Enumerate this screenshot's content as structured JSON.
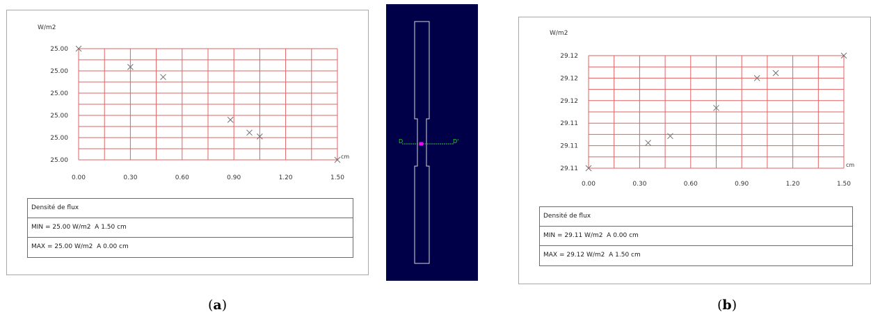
{
  "colors": {
    "grid": "#e06060",
    "marker": "#707070",
    "axis_text": "#333333",
    "geometry_bg": "#000048",
    "geometry_outline": "#d8d8d8",
    "probe_line": "#33cc33",
    "probe_point": "#ff00ff"
  },
  "chart_data": [
    {
      "type": "scatter",
      "panel": "(a)",
      "ylabel": "W/m2",
      "xlabel": "cm",
      "xlim": [
        0.0,
        1.5
      ],
      "x_ticks": [
        "0.00",
        "0.30",
        "0.60",
        "0.90",
        "1.20",
        "1.50"
      ],
      "y_ticks": [
        "25.00",
        "25.00",
        "25.00",
        "25.00",
        "25.00",
        "25.00"
      ],
      "grid": true,
      "points": [
        {
          "x": 0.0,
          "y": 0.0
        },
        {
          "x": 0.3,
          "y": 0.165
        },
        {
          "x": 0.49,
          "y": 0.255
        },
        {
          "x": 0.88,
          "y": 0.64
        },
        {
          "x": 0.99,
          "y": 0.755
        },
        {
          "x": 1.05,
          "y": 0.79
        },
        {
          "x": 1.5,
          "y": 1.0
        }
      ],
      "info": {
        "title": "Densité de flux",
        "min": "MIN = 25.00 W/m2  A 1.50 cm",
        "max": "MAX = 25.00 W/m2  A 0.00 cm"
      }
    },
    {
      "type": "scatter",
      "panel": "(b)",
      "ylabel": "W/m2",
      "xlabel": "cm",
      "xlim": [
        0.0,
        1.5
      ],
      "x_ticks": [
        "0.00",
        "0.30",
        "0.60",
        "0.90",
        "1.20",
        "1.50"
      ],
      "y_ticks": [
        "29.12",
        "29.12",
        "29.12",
        "29.11",
        "29.11",
        "29.11"
      ],
      "grid": true,
      "points": [
        {
          "x": 0.0,
          "y": 1.0
        },
        {
          "x": 0.35,
          "y": 0.775
        },
        {
          "x": 0.48,
          "y": 0.715
        },
        {
          "x": 0.75,
          "y": 0.465
        },
        {
          "x": 0.99,
          "y": 0.2
        },
        {
          "x": 1.1,
          "y": 0.155
        },
        {
          "x": 1.5,
          "y": 0.0
        }
      ],
      "info": {
        "title": "Densité de flux",
        "min": "MIN = 29.11 W/m2  A 0.00 cm",
        "max": "MAX = 29.12 W/m2  A 1.50 cm"
      }
    }
  ],
  "geometry": {
    "label_left": "D",
    "label_right": "D'"
  },
  "captions": {
    "a_open": "(",
    "a_letter": "a",
    "a_close": ")",
    "b_open": "(",
    "b_letter": "b",
    "b_close": ")"
  }
}
